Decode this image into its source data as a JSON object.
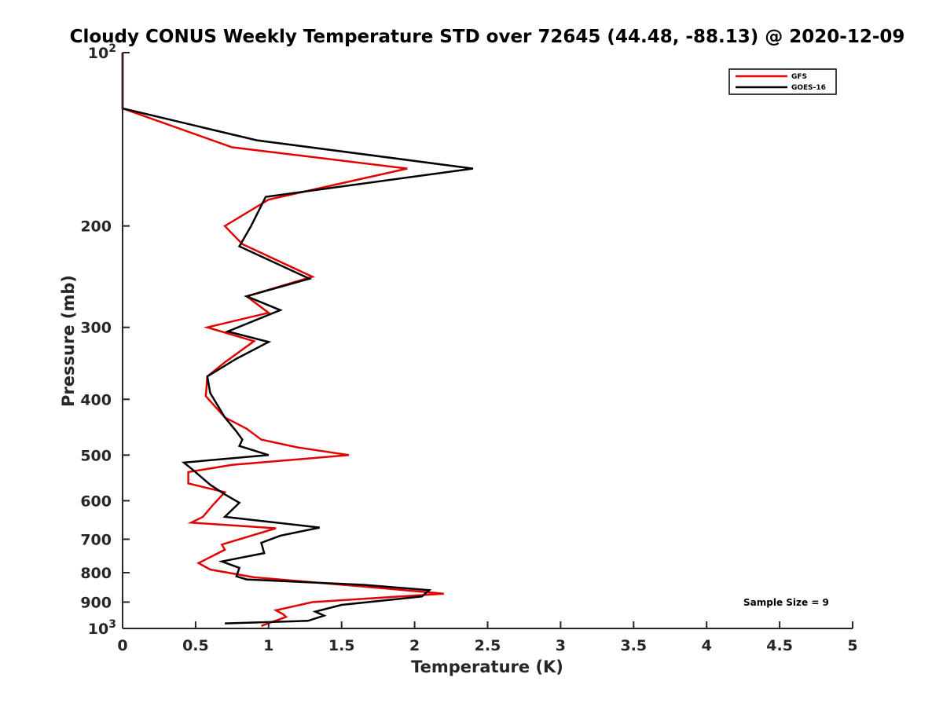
{
  "chart_data": {
    "type": "line",
    "title": "Cloudy CONUS Weekly Temperature STD over 72645 (44.48, -88.13) @ 2020-12-09",
    "xlabel": "Temperature (K)",
    "ylabel": "Pressure (mb)",
    "xlim": [
      0,
      5
    ],
    "ylim": [
      100,
      1000
    ],
    "y_scale": "log",
    "y_reversed": true,
    "grid": false,
    "legend_position": "top-right",
    "x_ticks": [
      "0",
      "0.5",
      "1",
      "1.5",
      "2",
      "2.5",
      "3",
      "3.5",
      "4",
      "4.5",
      "5"
    ],
    "y_ticks": [
      {
        "value": 100,
        "base": "10",
        "exp": "2"
      },
      {
        "value": 200,
        "label": "200"
      },
      {
        "value": 300,
        "label": "300"
      },
      {
        "value": 400,
        "label": "400"
      },
      {
        "value": 500,
        "label": "500"
      },
      {
        "value": 600,
        "label": "600"
      },
      {
        "value": 700,
        "label": "700"
      },
      {
        "value": 800,
        "label": "800"
      },
      {
        "value": 900,
        "label": "900"
      },
      {
        "value": 1000,
        "base": "10",
        "exp": "3"
      }
    ],
    "annotation": "Sample Size = 9",
    "series": [
      {
        "name": "GFS",
        "color": "#e50000",
        "points": [
          [
            0,
            100
          ],
          [
            0,
            125
          ],
          [
            0.75,
            146
          ],
          [
            1.95,
            159
          ],
          [
            1.0,
            180
          ],
          [
            0.7,
            200
          ],
          [
            0.82,
            215
          ],
          [
            1.3,
            245
          ],
          [
            0.85,
            265
          ],
          [
            1.0,
            283
          ],
          [
            0.58,
            300
          ],
          [
            0.9,
            317
          ],
          [
            0.7,
            345
          ],
          [
            0.58,
            365
          ],
          [
            0.57,
            395
          ],
          [
            0.7,
            430
          ],
          [
            0.85,
            450
          ],
          [
            0.95,
            470
          ],
          [
            1.2,
            485
          ],
          [
            1.55,
            500
          ],
          [
            0.75,
            520
          ],
          [
            0.45,
            535
          ],
          [
            0.45,
            560
          ],
          [
            0.7,
            580
          ],
          [
            0.62,
            610
          ],
          [
            0.55,
            640
          ],
          [
            0.47,
            655
          ],
          [
            1.05,
            670
          ],
          [
            0.68,
            715
          ],
          [
            0.7,
            730
          ],
          [
            0.52,
            770
          ],
          [
            0.6,
            790
          ],
          [
            0.9,
            815
          ],
          [
            1.7,
            848
          ],
          [
            2.2,
            870
          ],
          [
            1.3,
            900
          ],
          [
            1.05,
            930
          ],
          [
            1.1,
            945
          ],
          [
            1.12,
            955
          ],
          [
            0.95,
            990
          ]
        ]
      },
      {
        "name": "GOES-16",
        "color": "#000000",
        "points": [
          [
            0,
            100
          ],
          [
            0,
            125
          ],
          [
            0.92,
            142
          ],
          [
            2.4,
            159
          ],
          [
            0.98,
            178
          ],
          [
            0.88,
            200
          ],
          [
            0.8,
            217
          ],
          [
            1.28,
            247
          ],
          [
            0.85,
            265
          ],
          [
            1.08,
            280
          ],
          [
            0.72,
            305
          ],
          [
            1.0,
            318
          ],
          [
            0.78,
            340
          ],
          [
            0.58,
            365
          ],
          [
            0.6,
            390
          ],
          [
            0.7,
            430
          ],
          [
            0.78,
            455
          ],
          [
            0.82,
            470
          ],
          [
            0.8,
            482
          ],
          [
            1.0,
            500
          ],
          [
            0.42,
            515
          ],
          [
            0.48,
            530
          ],
          [
            0.6,
            563
          ],
          [
            0.7,
            585
          ],
          [
            0.8,
            605
          ],
          [
            0.7,
            640
          ],
          [
            1.35,
            668
          ],
          [
            1.08,
            690
          ],
          [
            0.95,
            710
          ],
          [
            0.97,
            740
          ],
          [
            0.68,
            765
          ],
          [
            0.8,
            785
          ],
          [
            0.78,
            812
          ],
          [
            0.85,
            822
          ],
          [
            1.65,
            840
          ],
          [
            2.1,
            858
          ],
          [
            2.05,
            880
          ],
          [
            1.5,
            910
          ],
          [
            1.32,
            935
          ],
          [
            1.38,
            950
          ],
          [
            1.27,
            970
          ],
          [
            0.7,
            980
          ]
        ]
      }
    ]
  }
}
